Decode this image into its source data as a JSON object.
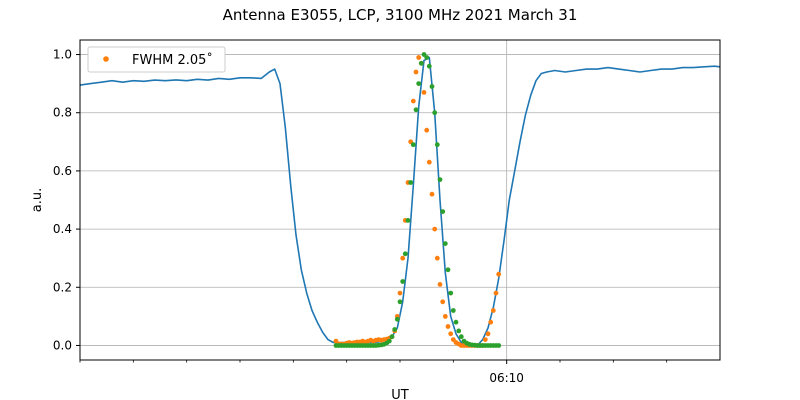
{
  "chart_data": {
    "type": "line",
    "title": "Antenna E3055, LCP, 3100 MHz 2021 March 31",
    "xlabel": "UT",
    "ylabel": "a.u.",
    "x_unit": "minutes",
    "xlim": [
      0,
      12
    ],
    "ylim": [
      -0.05,
      1.05
    ],
    "x_major_ticks": [
      {
        "x": 8,
        "label": "06:10"
      }
    ],
    "x_minor_ticks": [
      0,
      1,
      2,
      3,
      4,
      5,
      6,
      7,
      9,
      10,
      11
    ],
    "y_ticks": [
      0.0,
      0.2,
      0.4,
      0.6,
      0.8,
      1.0
    ],
    "y_tick_labels": [
      "0.0",
      "0.2",
      "0.4",
      "0.6",
      "0.8",
      "1.0"
    ],
    "grid": true,
    "legend": {
      "placement": "top-left",
      "entries": [
        {
          "label": "FWHM 2.05$^\\circ$",
          "display": "FWHM 2.05˚",
          "color": "#ff7f0e"
        }
      ]
    },
    "colors": {
      "measured": "#1f77b4",
      "fit": "#ff7f0e",
      "beam": "#2ca02c",
      "grid": "#b0b0b0"
    },
    "series": [
      {
        "role": "line",
        "color": "#1f77b4",
        "x": [
          0,
          0.2,
          0.4,
          0.6,
          0.8,
          1.0,
          1.2,
          1.4,
          1.6,
          1.8,
          2.0,
          2.2,
          2.4,
          2.6,
          2.8,
          3.0,
          3.2,
          3.4,
          3.55,
          3.65,
          3.75,
          3.85,
          3.95,
          4.05,
          4.15,
          4.25,
          4.35,
          4.45,
          4.55,
          4.65,
          4.75,
          4.85,
          4.95,
          5.05,
          5.15,
          5.25,
          5.35,
          5.45,
          5.55,
          5.65,
          5.75,
          5.85,
          5.95,
          6.05,
          6.15,
          6.25,
          6.35,
          6.45,
          6.55,
          6.65,
          6.75,
          6.85,
          6.95,
          7.05,
          7.15,
          7.25,
          7.35,
          7.45,
          7.55,
          7.65,
          7.75,
          7.85,
          7.95,
          8.05,
          8.15,
          8.25,
          8.35,
          8.45,
          8.55,
          8.65,
          8.75,
          8.9,
          9.1,
          9.3,
          9.5,
          9.7,
          9.9,
          10.1,
          10.3,
          10.5,
          10.7,
          10.9,
          11.1,
          11.3,
          11.5,
          11.7,
          11.9,
          12.0
        ],
        "y": [
          0.895,
          0.9,
          0.905,
          0.91,
          0.905,
          0.91,
          0.908,
          0.912,
          0.91,
          0.913,
          0.91,
          0.915,
          0.912,
          0.918,
          0.915,
          0.92,
          0.92,
          0.918,
          0.94,
          0.95,
          0.9,
          0.75,
          0.55,
          0.38,
          0.26,
          0.18,
          0.12,
          0.08,
          0.045,
          0.02,
          0.01,
          0.01,
          0.01,
          0.01,
          0.01,
          0.01,
          0.01,
          0.01,
          0.01,
          0.015,
          0.02,
          0.03,
          0.06,
          0.15,
          0.3,
          0.55,
          0.82,
          0.98,
          0.99,
          0.8,
          0.5,
          0.25,
          0.1,
          0.04,
          0.01,
          0.0,
          0.0,
          0.0,
          0.02,
          0.06,
          0.13,
          0.23,
          0.36,
          0.5,
          0.6,
          0.7,
          0.79,
          0.86,
          0.91,
          0.935,
          0.94,
          0.945,
          0.94,
          0.945,
          0.95,
          0.95,
          0.955,
          0.95,
          0.945,
          0.94,
          0.945,
          0.95,
          0.95,
          0.955,
          0.955,
          0.958,
          0.96,
          0.958
        ]
      },
      {
        "role": "points",
        "color": "#ff7f0e",
        "x": [
          4.8,
          4.85,
          4.9,
          4.95,
          5.0,
          5.05,
          5.1,
          5.15,
          5.2,
          5.25,
          5.3,
          5.35,
          5.4,
          5.45,
          5.5,
          5.55,
          5.6,
          5.65,
          5.7,
          5.75,
          5.8,
          5.85,
          5.9,
          5.95,
          6.0,
          6.05,
          6.1,
          6.15,
          6.2,
          6.25,
          6.3,
          6.35,
          6.4,
          6.45,
          6.5,
          6.55,
          6.6,
          6.65,
          6.7,
          6.75,
          6.8,
          6.85,
          6.9,
          6.95,
          7.0,
          7.05,
          7.1,
          7.15,
          7.2,
          7.25,
          7.3,
          7.35,
          7.4,
          7.45,
          7.5,
          7.55,
          7.6,
          7.65,
          7.7,
          7.75,
          7.8,
          7.85
        ],
        "y": [
          0.015,
          0.005,
          0.005,
          0.005,
          0.008,
          0.01,
          0.008,
          0.01,
          0.012,
          0.012,
          0.015,
          0.012,
          0.015,
          0.018,
          0.015,
          0.018,
          0.02,
          0.018,
          0.02,
          0.022,
          0.025,
          0.03,
          0.05,
          0.1,
          0.18,
          0.3,
          0.43,
          0.56,
          0.7,
          0.84,
          0.94,
          0.99,
          0.97,
          0.87,
          0.74,
          0.63,
          0.52,
          0.4,
          0.3,
          0.21,
          0.15,
          0.1,
          0.065,
          0.04,
          0.02,
          0.01,
          0.005,
          0.0,
          0.0,
          0.0,
          0.0,
          0.0,
          0.0,
          0.0,
          0.0,
          0.0,
          0.02,
          0.04,
          0.08,
          0.12,
          0.18,
          0.245
        ]
      },
      {
        "role": "points",
        "color": "#2ca02c",
        "x": [
          4.8,
          4.85,
          4.9,
          4.95,
          5.0,
          5.05,
          5.1,
          5.15,
          5.2,
          5.25,
          5.3,
          5.35,
          5.4,
          5.45,
          5.5,
          5.55,
          5.6,
          5.65,
          5.7,
          5.75,
          5.8,
          5.85,
          5.9,
          5.95,
          6.0,
          6.05,
          6.1,
          6.15,
          6.2,
          6.25,
          6.3,
          6.35,
          6.4,
          6.45,
          6.5,
          6.55,
          6.6,
          6.65,
          6.7,
          6.75,
          6.8,
          6.85,
          6.9,
          6.95,
          7.0,
          7.05,
          7.1,
          7.15,
          7.2,
          7.25,
          7.3,
          7.35,
          7.4,
          7.45,
          7.5,
          7.55,
          7.6,
          7.65,
          7.7,
          7.75,
          7.8,
          7.85
        ],
        "y": [
          0.0,
          0.0,
          0.0,
          0.0,
          0.0,
          0.0,
          0.0,
          0.0,
          0.0,
          0.0,
          0.0,
          0.0,
          0.0,
          0.0,
          0.0,
          0.0,
          0.001,
          0.002,
          0.004,
          0.008,
          0.015,
          0.03,
          0.055,
          0.09,
          0.15,
          0.22,
          0.315,
          0.43,
          0.56,
          0.69,
          0.81,
          0.9,
          0.97,
          1.0,
          0.99,
          0.96,
          0.89,
          0.8,
          0.69,
          0.57,
          0.46,
          0.35,
          0.26,
          0.18,
          0.12,
          0.08,
          0.05,
          0.03,
          0.015,
          0.008,
          0.004,
          0.002,
          0.001,
          0.0,
          0.0,
          0.0,
          0.0,
          0.0,
          0.0,
          0.0,
          0.0,
          0.0
        ]
      }
    ]
  }
}
